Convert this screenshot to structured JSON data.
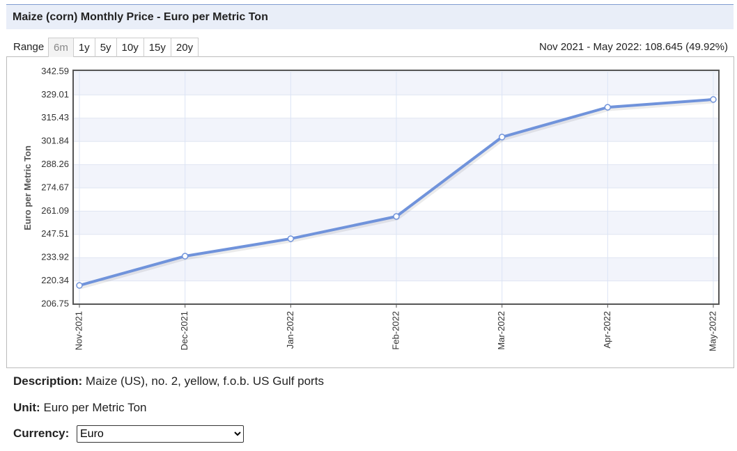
{
  "header": {
    "title": "Maize (corn) Monthly Price - Euro per Metric Ton"
  },
  "range": {
    "label": "Range",
    "buttons": [
      "6m",
      "1y",
      "5y",
      "10y",
      "15y",
      "20y"
    ],
    "summary": "Nov 2021 - May 2022: 108.645 (49.92%)"
  },
  "chart_data": {
    "type": "line",
    "y_label": "Euro per Metric Ton",
    "categories": [
      "Nov-2021",
      "Dec-2021",
      "Jan-2022",
      "Feb-2022",
      "Mar-2022",
      "Apr-2022",
      "May-2022"
    ],
    "values": [
      217.7,
      234.8,
      245.0,
      258.0,
      304.4,
      321.8,
      326.35
    ],
    "color": "#7093db",
    "ylim": [
      206.75,
      342.59
    ],
    "yticks": [
      206.75,
      220.34,
      233.92,
      247.51,
      261.09,
      274.67,
      288.26,
      301.84,
      315.43,
      329.01,
      342.59
    ],
    "grid": true
  },
  "details": {
    "description_label": "Description:",
    "description": "Maize (US), no. 2, yellow, f.o.b. US Gulf ports",
    "unit_label": "Unit:",
    "unit": "Euro per Metric Ton",
    "currency_label": "Currency:",
    "currency": "Euro"
  }
}
